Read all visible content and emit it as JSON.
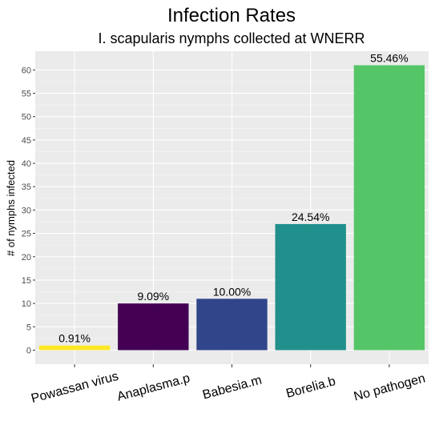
{
  "chart_data": {
    "type": "bar",
    "title": "Infection Rates",
    "subtitle": "I. scapularis nymphs collected at WNERR",
    "xlabel": "",
    "ylabel": "# of nymphs infected",
    "categories": [
      "Powassan virus",
      "Anaplasma.p",
      "Babesia.m",
      "Borelia.b",
      "No pathogen"
    ],
    "values": [
      1,
      10,
      11,
      27,
      61
    ],
    "labels": [
      "0.91%",
      "9.09%",
      "10.00%",
      "24.54%",
      "55.46%"
    ],
    "colors": [
      "#FDE725",
      "#440154",
      "#31458B",
      "#21908C",
      "#55C667"
    ],
    "ylim": [
      -3,
      64
    ],
    "yticks": [
      0,
      5,
      10,
      15,
      20,
      25,
      30,
      35,
      40,
      45,
      50,
      55,
      60
    ],
    "grid": true,
    "legend": "none",
    "panel_background": "#EBEBEB"
  }
}
